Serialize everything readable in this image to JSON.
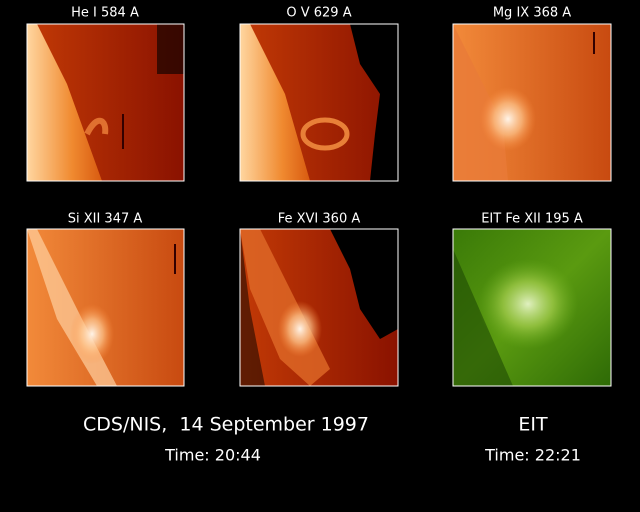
{
  "panels": [
    {
      "label": "He I 584 A"
    },
    {
      "label": "O V 629 A"
    },
    {
      "label": "Mg IX 368 A"
    },
    {
      "label": "Si XII 347 A"
    },
    {
      "label": "Fe XVI 360 A"
    },
    {
      "label": "EIT Fe XII 195 A"
    }
  ],
  "captions": {
    "cds": "CDS/NIS,  14 September 1997",
    "cds_time": "Time: 20:44",
    "eit": "EIT",
    "eit_time": "Time: 22:21"
  }
}
